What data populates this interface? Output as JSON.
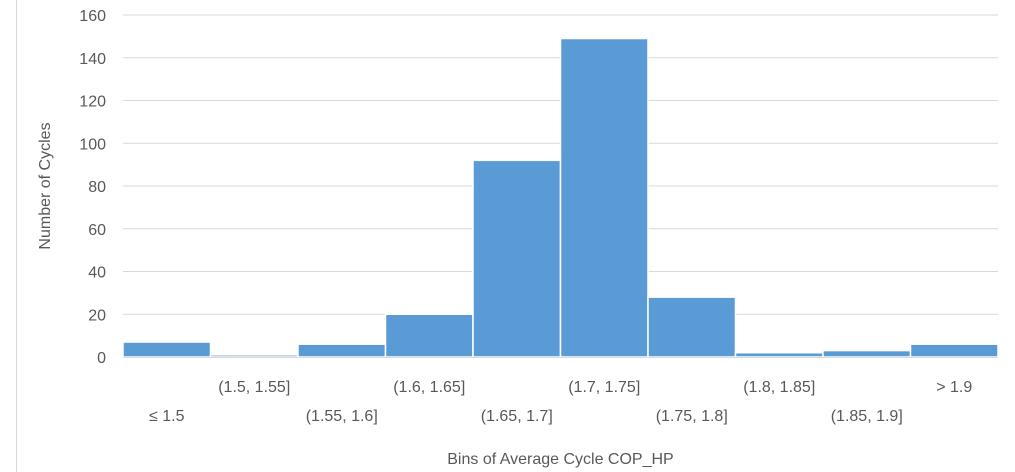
{
  "chart_data": {
    "type": "bar",
    "title": "",
    "xlabel": "Bins of Average Cycle COP_HP",
    "ylabel": "Number of Cycles",
    "categories": [
      "≤ 1.5",
      "(1.5, 1.55]",
      "(1.55, 1.6]",
      "(1.6, 1.65]",
      "(1.65, 1.7]",
      "(1.7, 1.75]",
      "(1.75, 1.8]",
      "(1.8, 1.85]",
      "(1.85, 1.9]",
      "> 1.9"
    ],
    "values": [
      7,
      1,
      6,
      20,
      92,
      149,
      28,
      2,
      3,
      6
    ],
    "ylim": [
      0,
      160
    ],
    "yticks": [
      "0",
      "20",
      "40",
      "60",
      "80",
      "100",
      "120",
      "140",
      "160"
    ],
    "grid": true,
    "legend": "none",
    "bar_color": "#5b9bd5",
    "grid_color": "#d9d9d9",
    "text_color": "#595959"
  }
}
